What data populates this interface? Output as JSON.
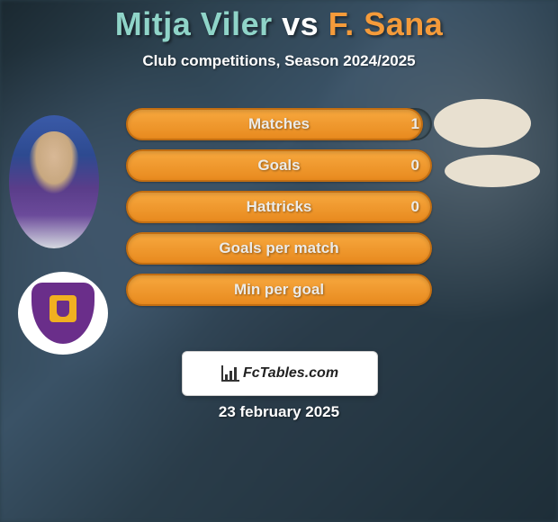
{
  "title": {
    "player1": "Mitja Viler",
    "vs": "vs",
    "player2": "F. Sana",
    "color_player1": "#8fd4c8",
    "color_vs": "#ffffff",
    "color_player2": "#f59b3a",
    "fontsize": 36
  },
  "subtitle": "Club competitions, Season 2024/2025",
  "bars": {
    "track_color": "#415560",
    "fill_gradient_from": "#f7a83e",
    "fill_gradient_to": "#e88a1f",
    "fill_border": "#c26e12",
    "track_border": "#2b3a42",
    "label_color": "#ecebe8",
    "label_shadow_color": "#9c5a10",
    "value_color": "#ecebe8",
    "fontsize": 17,
    "rows": [
      {
        "label": "Matches",
        "value": "1",
        "fill_pct": 97
      },
      {
        "label": "Goals",
        "value": "0",
        "fill_pct": 100
      },
      {
        "label": "Hattricks",
        "value": "0",
        "fill_pct": 100
      },
      {
        "label": "Goals per match",
        "value": "",
        "fill_pct": 100
      },
      {
        "label": "Min per goal",
        "value": "",
        "fill_pct": 100
      }
    ]
  },
  "footer_brand": "FcTables.com",
  "date": "23 february 2025",
  "club_colors": {
    "circle": "#ffffff",
    "shield": "#6a2e8a",
    "accent": "#f0b020"
  },
  "avatar2_bg": "#e8e0d0"
}
